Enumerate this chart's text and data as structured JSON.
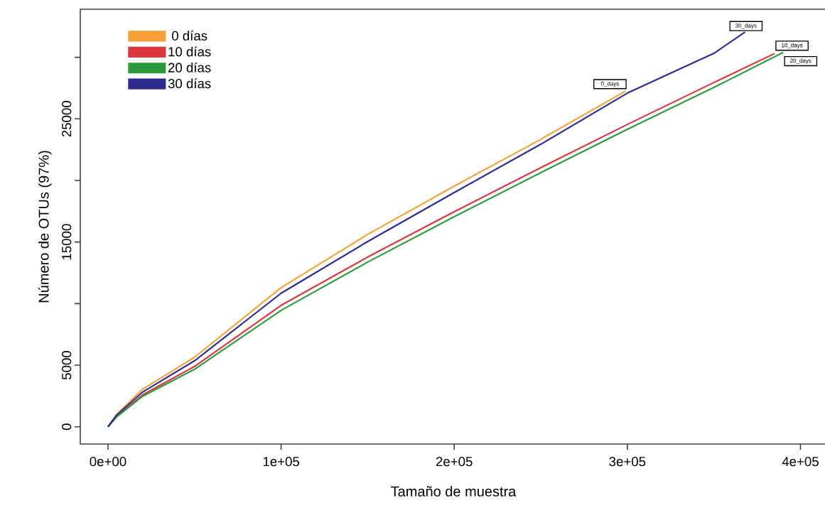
{
  "chart_data": {
    "type": "line",
    "xlabel": "Tamaño de muestra",
    "ylabel": "Número de OTUs (97%)",
    "xlim": [
      -16000,
      415000
    ],
    "ylim": [
      -1400,
      33900
    ],
    "xticks": [
      {
        "value": 0,
        "label": "0e+00"
      },
      {
        "value": 100000,
        "label": "1e+05"
      },
      {
        "value": 200000,
        "label": "2e+05"
      },
      {
        "value": 300000,
        "label": "3e+05"
      },
      {
        "value": 400000,
        "label": "4e+05"
      }
    ],
    "yticks": [
      0,
      5000,
      {
        "value": 10000,
        "label": null
      },
      15000,
      {
        "value": 20000,
        "label": null
      },
      25000,
      {
        "value": 30000,
        "label": null
      }
    ],
    "legend": "top left",
    "grid": false,
    "marker": "none",
    "line_style": "solid",
    "series": [
      {
        "name": "0 días",
        "color": "#f7a13a",
        "x": [
          0,
          5000,
          20000,
          50000,
          100000,
          150000,
          200000,
          250000,
          299000
        ],
        "values": [
          0,
          1000,
          3050,
          5650,
          11300,
          15620,
          19540,
          23340,
          27260
        ]
      },
      {
        "name": "10 días",
        "color": "#d9363e",
        "x": [
          0,
          5000,
          20000,
          50000,
          100000,
          150000,
          200000,
          250000,
          300000,
          350000,
          385000
        ],
        "values": [
          0,
          850,
          2590,
          4900,
          9860,
          13780,
          17460,
          21040,
          24550,
          27950,
          30300
        ]
      },
      {
        "name": "20 días",
        "color": "#2e9a3e",
        "x": [
          0,
          5000,
          20000,
          50000,
          100000,
          150000,
          200000,
          250000,
          300000,
          350000,
          390000
        ],
        "values": [
          0,
          800,
          2480,
          4670,
          9450,
          13370,
          17060,
          20630,
          24150,
          27550,
          30400
        ]
      },
      {
        "name": "30 días",
        "color": "#2b2b8f",
        "x": [
          0,
          5000,
          20000,
          50000,
          100000,
          150000,
          200000,
          250000,
          300000,
          350000,
          368000
        ],
        "values": [
          0,
          950,
          2820,
          5360,
          10840,
          15040,
          19020,
          22940,
          27090,
          30320,
          32050
        ]
      }
    ],
    "annotations": [
      {
        "text": "0_days",
        "x": 299000,
        "y": 27260
      },
      {
        "text": "30_days",
        "x": 368000,
        "y": 32050
      },
      {
        "text": "10_days",
        "x": 385000,
        "y": 30300
      },
      {
        "text": "20_days",
        "x": 390000,
        "y": 30400
      }
    ]
  }
}
